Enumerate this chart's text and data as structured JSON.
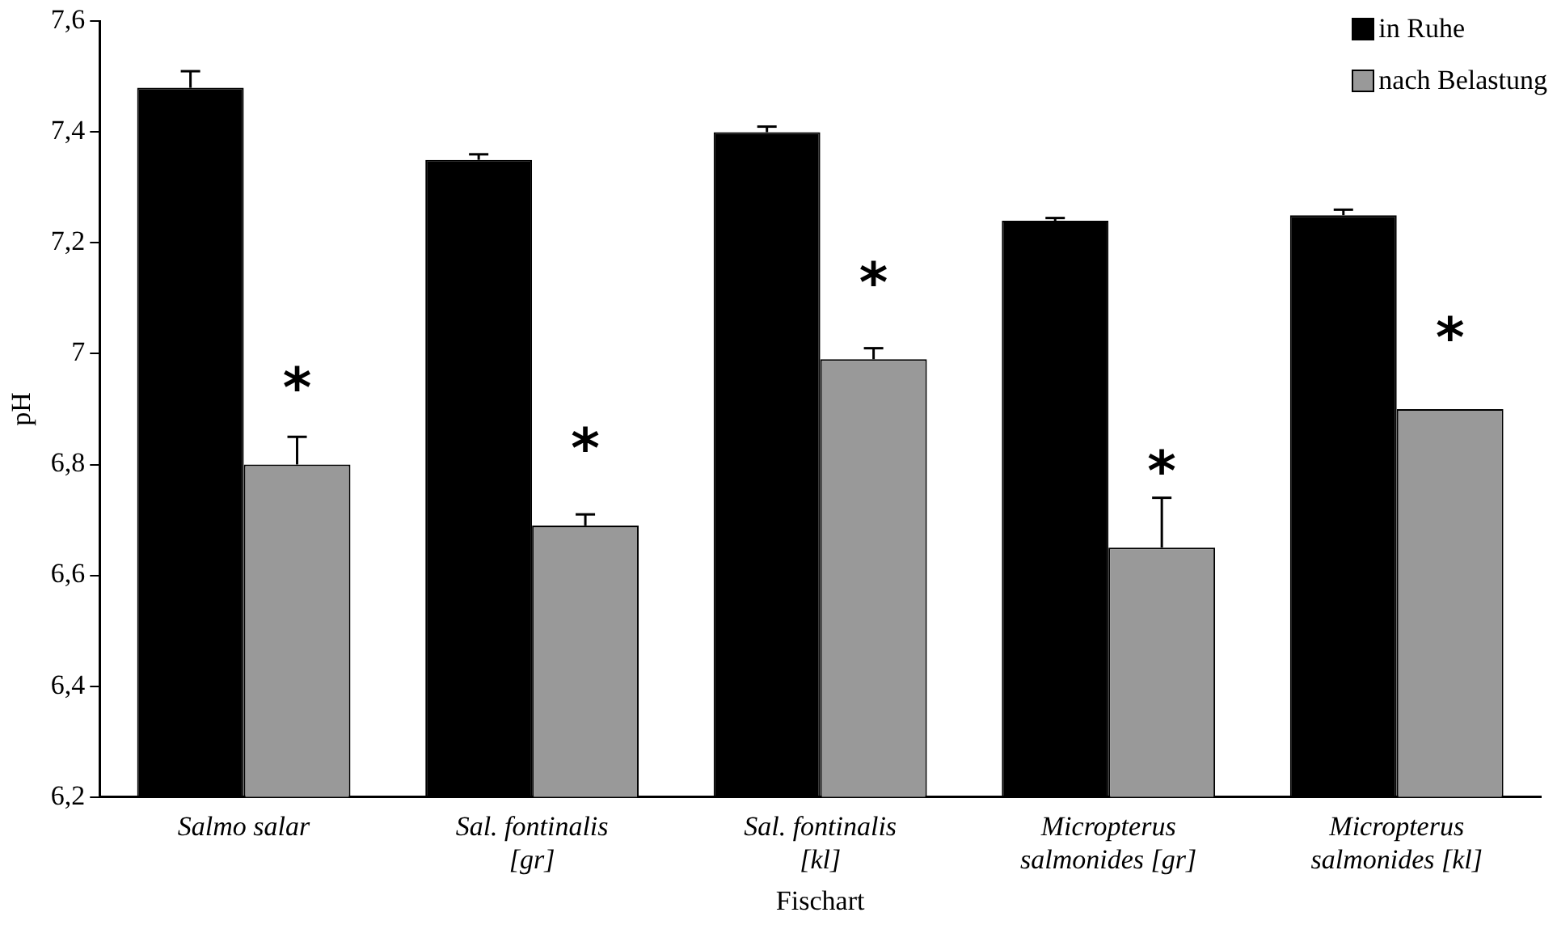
{
  "chart_data": {
    "type": "bar",
    "xlabel": "Fischart",
    "ylabel": "pH",
    "categories": [
      "Salmo salar",
      "Sal. fontinalis [gr]",
      "Sal. fontinalis [kl]",
      "Micropterus salmonides [gr]",
      "Micropterus salmonides [kl]"
    ],
    "series": [
      {
        "name": "in Ruhe",
        "color": "#000000",
        "values": [
          7.48,
          7.35,
          7.4,
          7.24,
          7.25
        ],
        "errors": [
          [
            7.48,
            7.51
          ],
          [
            7.35,
            7.36
          ],
          [
            7.4,
            7.41
          ],
          [
            7.24,
            7.245
          ],
          [
            7.25,
            7.26
          ]
        ]
      },
      {
        "name": "nach Belastung",
        "color": "#999999",
        "values": [
          6.8,
          6.69,
          6.99,
          6.65,
          6.9
        ],
        "errors": [
          [
            6.8,
            6.85
          ],
          [
            6.69,
            6.71
          ],
          [
            6.99,
            7.01
          ],
          [
            6.65,
            6.74
          ],
          [
            6.9,
            6.9
          ]
        ]
      }
    ],
    "ylim": [
      6.2,
      7.6
    ],
    "yticks": [
      {
        "value": 6.2,
        "label": "6,2"
      },
      {
        "value": 6.4,
        "label": "6,4"
      },
      {
        "value": 6.6,
        "label": "6,6"
      },
      {
        "value": 6.8,
        "label": "6,8"
      },
      {
        "value": 7,
        "label": "7"
      },
      {
        "value": 7.2,
        "label": "7,2"
      },
      {
        "value": 7.4,
        "label": "7,4"
      },
      {
        "value": 7.6,
        "label": "7,6"
      }
    ],
    "grid": false,
    "legend": "top right",
    "annotations": [
      {
        "text": "*",
        "x": "Salmo salar",
        "y": 6.93
      },
      {
        "text": "*",
        "x": "Sal. fontinalis [gr]",
        "y": 6.82
      },
      {
        "text": "*",
        "x": "Sal. fontinalis [kl]",
        "y": 7.12
      },
      {
        "text": "*",
        "x": "Micropterus salmonides [gr]",
        "y": 6.78
      },
      {
        "text": "*",
        "x": "Micropterus salmonides [kl]",
        "y": 7.02
      }
    ]
  }
}
